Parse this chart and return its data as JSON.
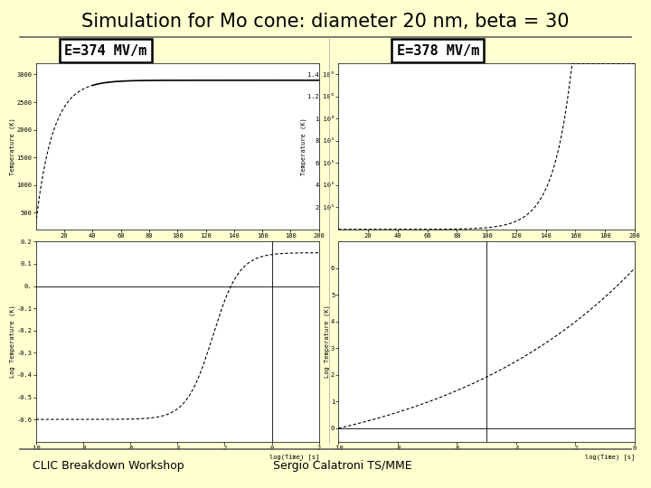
{
  "title": "Simulation for Mo cone: diameter 20 nm, beta = 30",
  "bg_color": "#FFFFD0",
  "plot_bg_color": "#FFFFFF",
  "label_left": "E=374 MV/m",
  "label_right": "E=378 MV/m",
  "footer_left": "CLIC Breakdown Workshop",
  "footer_right": "Sergio Calatroni TS/MME",
  "line_color": "#000000",
  "title_fontsize": 15,
  "label_fontsize": 11,
  "tick_fontsize": 5,
  "axis_label_fontsize": 5,
  "footer_fontsize": 9
}
